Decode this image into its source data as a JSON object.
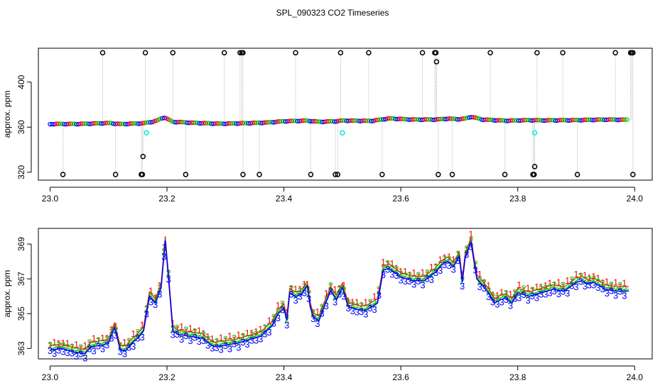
{
  "chart_data": {
    "title": "SPL_090323  CO2 Timeseries",
    "colors": {
      "series1": "#ff0000",
      "series2": "#00cc00",
      "series3": "#0000ff",
      "spike": "#000000",
      "flag": "#00e5ee",
      "drop": "#bebebe",
      "axis": "#000000"
    },
    "panels": [
      {
        "id": "top",
        "type": "scatter",
        "ylabel": "approx. ppm",
        "xlim": [
          22.98,
          24.03
        ],
        "ylim": [
          313,
          430
        ],
        "xticks": [
          23.0,
          23.2,
          23.4,
          23.6,
          23.8,
          24.0
        ],
        "xtick_labels": [
          "23.0",
          "23.2",
          "23.4",
          "23.6",
          "23.8",
          "24.0"
        ],
        "yticks": [
          320,
          360,
          400
        ],
        "ytick_labels": [
          "320",
          "360",
          "400"
        ],
        "baseline": [
          [
            23.0,
            362.6
          ],
          [
            23.05,
            362.6
          ],
          [
            23.1,
            363.4
          ],
          [
            23.12,
            362.5
          ],
          [
            23.16,
            363.2
          ],
          [
            23.18,
            365.0
          ],
          [
            23.195,
            368.5
          ],
          [
            23.21,
            364.5
          ],
          [
            23.25,
            363.5
          ],
          [
            23.29,
            362.8
          ],
          [
            23.33,
            363.2
          ],
          [
            23.37,
            363.8
          ],
          [
            23.4,
            365.0
          ],
          [
            23.44,
            365.5
          ],
          [
            23.46,
            364.5
          ],
          [
            23.49,
            365.0
          ],
          [
            23.5,
            365.6
          ],
          [
            23.55,
            365.3
          ],
          [
            23.58,
            367.5
          ],
          [
            23.62,
            366.5
          ],
          [
            23.66,
            366.5
          ],
          [
            23.68,
            367.3
          ],
          [
            23.7,
            366.8
          ],
          [
            23.71,
            367.3
          ],
          [
            23.72,
            369.0
          ],
          [
            23.74,
            366.5
          ],
          [
            23.78,
            365.5
          ],
          [
            23.82,
            366.0
          ],
          [
            23.84,
            365.8
          ],
          [
            23.9,
            366.0
          ],
          [
            23.95,
            366.5
          ],
          [
            23.99,
            366.3
          ]
        ],
        "spikes_high": [
          23.09,
          23.163,
          23.21,
          23.298,
          23.325,
          23.328,
          23.33,
          23.42,
          23.497,
          23.545,
          23.637,
          23.658,
          23.66,
          23.753,
          23.833,
          23.877,
          23.967,
          23.993,
          23.995,
          23.997
        ],
        "spike_high_value": 426,
        "spikes_low": [
          23.022,
          23.112,
          23.156,
          23.158,
          23.232,
          23.33,
          23.358,
          23.446,
          23.488,
          23.492,
          23.568,
          23.664,
          23.688,
          23.778,
          23.826,
          23.828,
          23.902,
          23.997
        ],
        "spike_low_value": 318,
        "spikes_mid": [
          {
            "x": 23.159,
            "y": 334
          },
          {
            "x": 23.661,
            "y": 418
          },
          {
            "x": 23.829,
            "y": 325
          }
        ],
        "flagged": [
          {
            "x": 23.165,
            "y": 355
          },
          {
            "x": 23.5,
            "y": 355
          },
          {
            "x": 23.829,
            "y": 355
          }
        ]
      },
      {
        "id": "bottom",
        "type": "line",
        "ylabel": "approx. ppm",
        "xlim": [
          22.98,
          24.03
        ],
        "ylim": [
          362.4,
          369.9
        ],
        "xticks": [
          23.0,
          23.2,
          23.4,
          23.6,
          23.8,
          24.0
        ],
        "xtick_labels": [
          "23.0",
          "23.2",
          "23.4",
          "23.6",
          "23.8",
          "24.0"
        ],
        "yticks": [
          363,
          365,
          367,
          369
        ],
        "ytick_labels": [
          "363",
          "365",
          "367",
          "369"
        ],
        "marker_labels": [
          "1",
          "2",
          "3"
        ],
        "series_base": [
          [
            23.0,
            362.9
          ],
          [
            23.02,
            363.0
          ],
          [
            23.04,
            362.8
          ],
          [
            23.06,
            362.7
          ],
          [
            23.07,
            363.1
          ],
          [
            23.09,
            363.2
          ],
          [
            23.1,
            363.3
          ],
          [
            23.11,
            364.2
          ],
          [
            23.115,
            363.6
          ],
          [
            23.12,
            362.9
          ],
          [
            23.13,
            362.9
          ],
          [
            23.14,
            363.3
          ],
          [
            23.15,
            363.6
          ],
          [
            23.16,
            364.0
          ],
          [
            23.17,
            366.0
          ],
          [
            23.18,
            365.6
          ],
          [
            23.19,
            366.5
          ],
          [
            23.197,
            369.2
          ],
          [
            23.205,
            366.1
          ],
          [
            23.21,
            364.0
          ],
          [
            23.22,
            363.8
          ],
          [
            23.24,
            363.7
          ],
          [
            23.26,
            363.6
          ],
          [
            23.28,
            363.1
          ],
          [
            23.3,
            363.2
          ],
          [
            23.32,
            363.3
          ],
          [
            23.34,
            363.5
          ],
          [
            23.36,
            363.7
          ],
          [
            23.38,
            364.3
          ],
          [
            23.39,
            365.0
          ],
          [
            23.4,
            365.3
          ],
          [
            23.405,
            364.6
          ],
          [
            23.41,
            366.2
          ],
          [
            23.42,
            366.0
          ],
          [
            23.43,
            366.1
          ],
          [
            23.44,
            366.6
          ],
          [
            23.445,
            365.4
          ],
          [
            23.45,
            364.8
          ],
          [
            23.46,
            364.6
          ],
          [
            23.47,
            365.5
          ],
          [
            23.48,
            366.3
          ],
          [
            23.49,
            365.8
          ],
          [
            23.5,
            366.5
          ],
          [
            23.51,
            365.4
          ],
          [
            23.52,
            365.3
          ],
          [
            23.53,
            365.2
          ],
          [
            23.54,
            365.2
          ],
          [
            23.55,
            365.4
          ],
          [
            23.56,
            365.6
          ],
          [
            23.57,
            367.5
          ],
          [
            23.58,
            367.6
          ],
          [
            23.6,
            367.1
          ],
          [
            23.62,
            366.9
          ],
          [
            23.64,
            366.9
          ],
          [
            23.66,
            367.4
          ],
          [
            23.67,
            367.8
          ],
          [
            23.68,
            368.0
          ],
          [
            23.69,
            367.7
          ],
          [
            23.7,
            368.3
          ],
          [
            23.705,
            366.8
          ],
          [
            23.71,
            368.2
          ],
          [
            23.72,
            369.1
          ],
          [
            23.73,
            367.0
          ],
          [
            23.74,
            366.6
          ],
          [
            23.75,
            366.2
          ],
          [
            23.76,
            365.6
          ],
          [
            23.77,
            365.8
          ],
          [
            23.78,
            365.9
          ],
          [
            23.79,
            365.6
          ],
          [
            23.8,
            366.2
          ],
          [
            23.82,
            366.0
          ],
          [
            23.84,
            366.2
          ],
          [
            23.86,
            366.4
          ],
          [
            23.88,
            366.3
          ],
          [
            23.9,
            366.8
          ],
          [
            23.91,
            366.9
          ],
          [
            23.92,
            366.7
          ],
          [
            23.93,
            366.8
          ],
          [
            23.95,
            366.4
          ],
          [
            23.97,
            366.3
          ],
          [
            23.99,
            366.3
          ]
        ],
        "series": [
          {
            "offset": 0.25
          },
          {
            "offset": 0.1
          },
          {
            "offset": 0.0
          }
        ]
      }
    ]
  }
}
